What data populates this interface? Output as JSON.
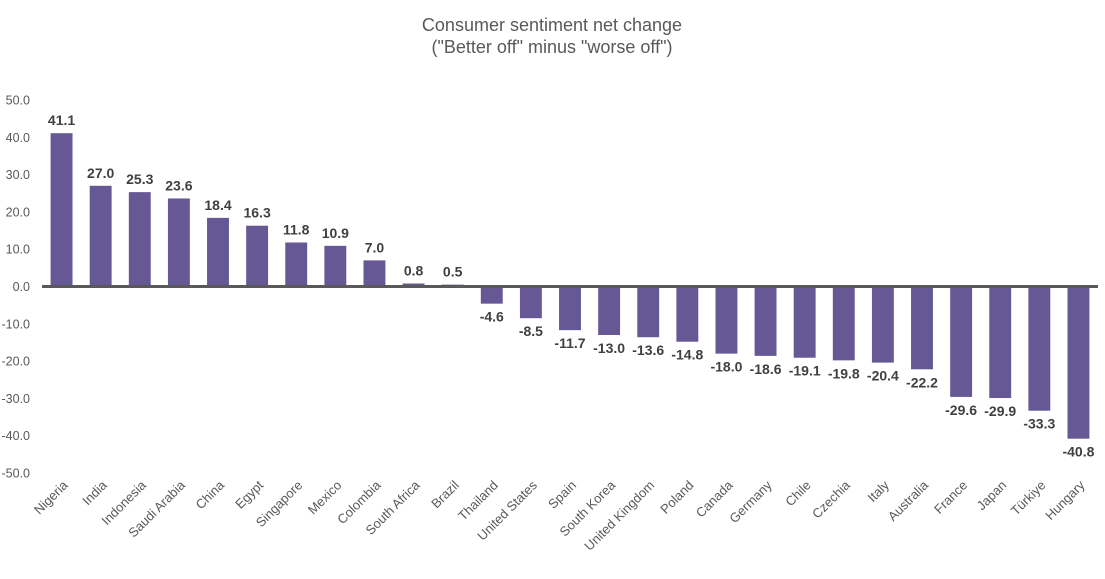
{
  "chart_data": {
    "type": "bar",
    "title": "Consumer sentiment net change",
    "subtitle": "(\"Better off\" minus \"worse off\")",
    "xlabel": "",
    "ylabel": "",
    "ylim": [
      -50,
      50
    ],
    "y_ticks": [
      50,
      40,
      30,
      20,
      10,
      0,
      -10,
      -20,
      -30,
      -40,
      -50
    ],
    "y_tick_labels": [
      "50.0",
      "40.0",
      "30.0",
      "20.0",
      "10.0",
      "0.0",
      "-10.0",
      "-20.0",
      "-30.0",
      "-40.0",
      "-50.0"
    ],
    "grid": false,
    "legend": "none",
    "bar_color": "#665894",
    "zero_line_color": "#595959",
    "categories": [
      "Nigeria",
      "India",
      "Indonesia",
      "Saudi Arabia",
      "China",
      "Egypt",
      "Singapore",
      "Mexico",
      "Colombia",
      "South Africa",
      "Brazil",
      "Thailand",
      "United States",
      "Spain",
      "South Korea",
      "United Kingdom",
      "Poland",
      "Canada",
      "Germany",
      "Chile",
      "Czechia",
      "Italy",
      "Australia",
      "France",
      "Japan",
      "Türkiye",
      "Hungary"
    ],
    "values": [
      41.1,
      27.0,
      25.3,
      23.6,
      18.4,
      16.3,
      11.8,
      10.9,
      7.0,
      0.8,
      0.5,
      -4.6,
      -8.5,
      -11.7,
      -13.0,
      -13.6,
      -14.8,
      -18.0,
      -18.6,
      -19.1,
      -19.8,
      -20.4,
      -22.2,
      -29.6,
      -29.9,
      -33.3,
      -40.8
    ],
    "data_labels": [
      "41.1",
      "27.0",
      "25.3",
      "23.6",
      "18.4",
      "16.3",
      "11.8",
      "10.9",
      "7.0",
      "0.8",
      "0.5",
      "-4.6",
      "-8.5",
      "-11.7",
      "-13.0",
      "-13.6",
      "-14.8",
      "-18.0",
      "-18.6",
      "-19.1",
      "-19.8",
      "-20.4",
      "-22.2",
      "-29.6",
      "-29.9",
      "-33.3",
      "-40.8"
    ]
  }
}
